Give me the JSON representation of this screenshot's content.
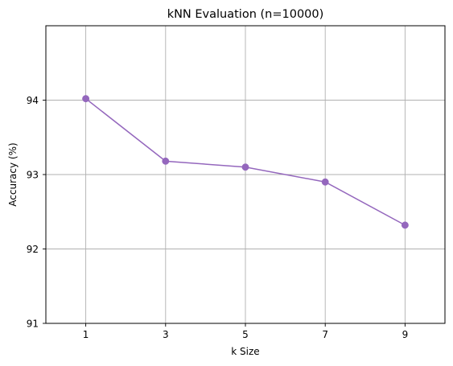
{
  "chart_data": {
    "type": "line",
    "title": "kNN Evaluation (n=10000)",
    "xlabel": "k Size",
    "ylabel": "Accuracy (%)",
    "x": [
      1,
      3,
      5,
      7,
      9
    ],
    "x_tick_labels": [
      "1",
      "3",
      "5",
      "7",
      "9"
    ],
    "xlim": [
      0,
      10
    ],
    "ylim": [
      91,
      95
    ],
    "y_ticks": [
      91,
      92,
      93,
      94
    ],
    "y_tick_labels": [
      "91",
      "92",
      "93",
      "94"
    ],
    "grid": true,
    "series": [
      {
        "values": [
          94.02,
          93.18,
          93.1,
          92.9,
          92.32
        ],
        "color": "#9467bd",
        "marker": "circle"
      }
    ]
  }
}
